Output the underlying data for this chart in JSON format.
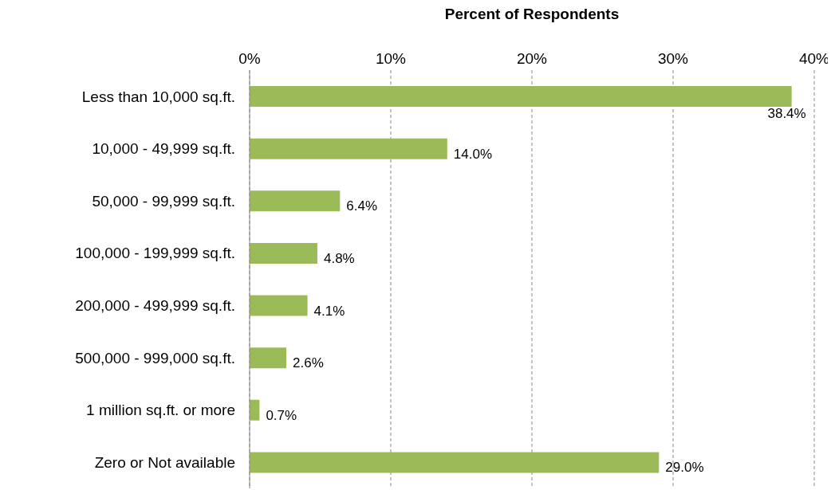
{
  "chart_data": {
    "type": "bar",
    "orientation": "horizontal",
    "xlabel": "Percent of Respondents",
    "categories": [
      "Less than 10,000 sq.ft.",
      "10,000 - 49,999 sq.ft.",
      "50,000 - 99,999 sq.ft.",
      "100,000 - 199,999 sq.ft.",
      "200,000 - 499,999 sq.ft.",
      "500,000 - 999,000 sq.ft.",
      "1 million sq.ft. or more",
      "Zero or Not available"
    ],
    "values": [
      38.4,
      14.0,
      6.4,
      4.8,
      4.1,
      2.6,
      0.7,
      29.0
    ],
    "value_labels": [
      "38.4%",
      "14.0%",
      "6.4%",
      "4.8%",
      "4.1%",
      "2.6%",
      "0.7%",
      "29.0%"
    ],
    "color": "#9bbb59",
    "xlim": [
      0,
      40
    ],
    "xticks": [
      {
        "value": 0,
        "label": "0%"
      },
      {
        "value": 10,
        "label": "10%"
      },
      {
        "value": 20,
        "label": "20%"
      },
      {
        "value": 30,
        "label": "30%"
      },
      {
        "value": 40,
        "label": "40%"
      }
    ],
    "grid": "x",
    "legend": false
  }
}
